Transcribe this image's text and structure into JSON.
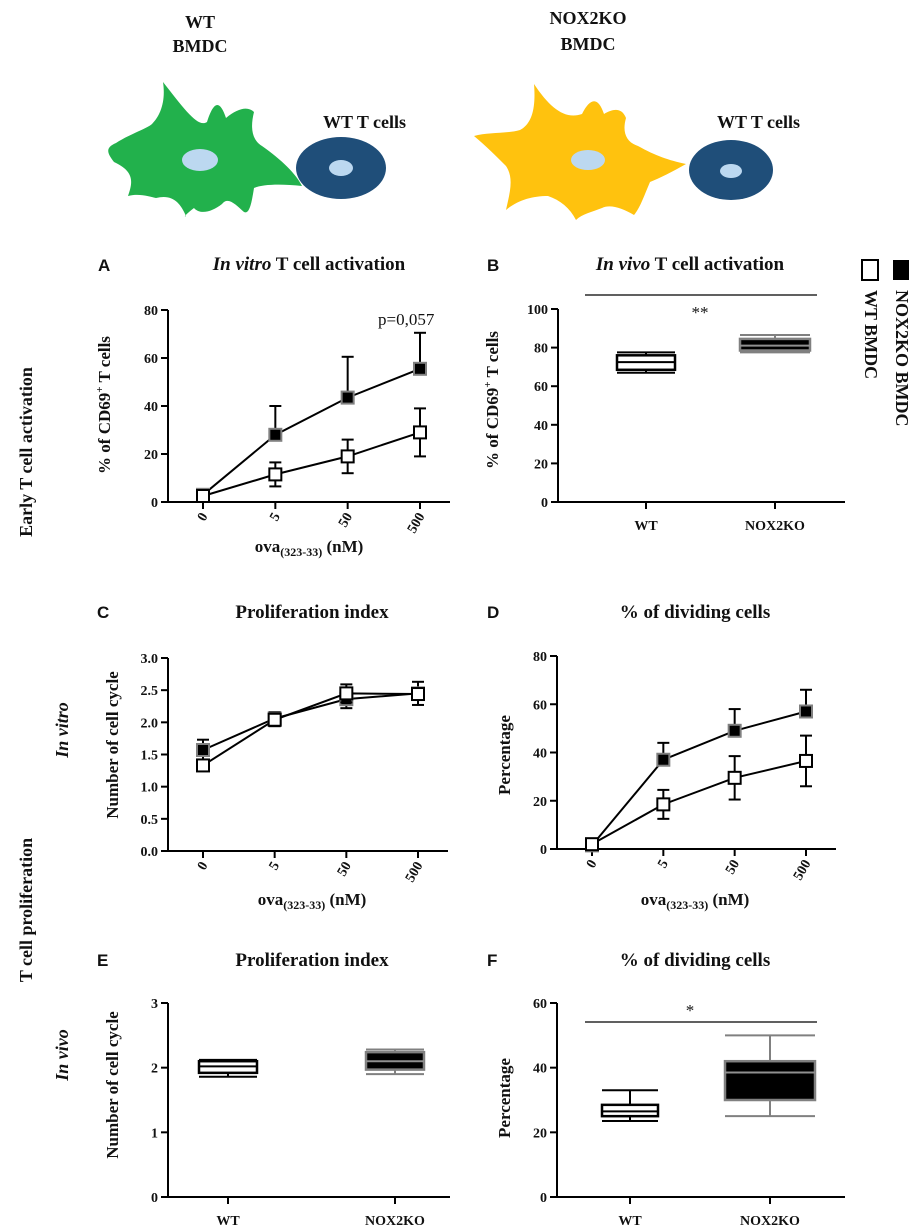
{
  "colors": {
    "wt_cell": "#22b14c",
    "nox_cell": "#ffc20e",
    "tcell_outer": "#1f4e79",
    "nucleus": "#bcd8f0",
    "nox_box_fill": "#000000",
    "wt_box_fill": "#ffffff",
    "nox_marker_outline": "#808080"
  },
  "diagram": {
    "wt_label_line1": "WT",
    "wt_label_line2": "BMDC",
    "wt_tcells": "WT T cells",
    "nox_label_line1": "NOX2KO",
    "nox_label_line2": "BMDC",
    "nox_tcells": "WT T cells"
  },
  "legend": {
    "nox": "NOX2KO BMDC",
    "wt": "WT BMDC"
  },
  "row_labels": {
    "early": "Early T cell activation",
    "prolif": "T cell proliferation",
    "in_vitro": "In vitro",
    "in_vivo": "In vivo"
  },
  "panels": {
    "A": {
      "letter": "A",
      "title_italic": "In vitro",
      "title_rest": " T cell activation"
    },
    "B": {
      "letter": "B",
      "title_italic": "In vivo",
      "title_rest": " T cell activation"
    },
    "C": {
      "letter": "C",
      "title": "Proliferation index"
    },
    "D": {
      "letter": "D",
      "title": "% of dividing cells"
    },
    "E": {
      "letter": "E",
      "title": "Proliferation index"
    },
    "F": {
      "letter": "F",
      "title": "% of dividing cells"
    }
  },
  "axes": {
    "ova_main": "ova",
    "ova_sub": "(323-33)",
    "ova_unit": " (nM)",
    "cd69_pre": "% of CD69",
    "cd69_sup": "+",
    "cd69_post": " T cells",
    "num_cycle": "Number of cell cycle",
    "percentage": "Percentage"
  },
  "annotations": {
    "A_p": "p=0,057",
    "B_sig": "**",
    "F_sig": "*"
  },
  "chart_data": [
    {
      "id": "A",
      "type": "line",
      "title": "In vitro T cell activation",
      "categories": [
        "0",
        "5",
        "50",
        "500"
      ],
      "ylabel": "% of CD69+ T cells",
      "xlabel": "ova(323-33) (nM)",
      "ylim": [
        0,
        80
      ],
      "yticks": [
        0,
        20,
        40,
        60,
        80
      ],
      "series": [
        {
          "name": "NOX2KO BMDC",
          "values": [
            3,
            28,
            43.5,
            55.5
          ],
          "err": [
            1.5,
            12,
            17,
            15
          ]
        },
        {
          "name": "WT BMDC",
          "values": [
            2.5,
            11.5,
            19,
            29
          ],
          "err": [
            1.5,
            5,
            7,
            10
          ]
        }
      ]
    },
    {
      "id": "B",
      "type": "box",
      "title": "In vivo T cell activation",
      "categories": [
        "WT",
        "NOX2KO"
      ],
      "ylabel": "% of CD69+ T cells",
      "ylim": [
        0,
        100
      ],
      "yticks": [
        0,
        20,
        40,
        60,
        80,
        100
      ],
      "boxes": [
        {
          "name": "WT",
          "min": 67,
          "q1": 68.5,
          "median": 72.5,
          "q3": 76,
          "max": 77.5
        },
        {
          "name": "NOX2KO",
          "min": 77.5,
          "q1": 78.5,
          "median": 81,
          "q3": 84.5,
          "max": 86.5
        }
      ],
      "significance": "**"
    },
    {
      "id": "C",
      "type": "line",
      "title": "Proliferation index",
      "categories": [
        "0",
        "5",
        "50",
        "500"
      ],
      "ylabel": "Number of cell cycle",
      "xlabel": "ova(323-33) (nM)",
      "ylim": [
        0,
        3.0
      ],
      "yticks": [
        0.0,
        0.5,
        1.0,
        1.5,
        2.0,
        2.5,
        3.0
      ],
      "series": [
        {
          "name": "NOX2KO BMDC",
          "values": [
            1.57,
            2.06,
            2.36,
            2.45
          ],
          "err": [
            0.16,
            0.1,
            0.14,
            0.18
          ]
        },
        {
          "name": "WT BMDC",
          "values": [
            1.33,
            2.04,
            2.45,
            2.44
          ],
          "err": [
            0.08,
            0.1,
            0.14,
            0.08
          ]
        }
      ]
    },
    {
      "id": "D",
      "type": "line",
      "title": "% of dividing cells",
      "categories": [
        "0",
        "5",
        "50",
        "500"
      ],
      "ylabel": "Percentage",
      "xlabel": "ova(323-33) (nM)",
      "ylim": [
        0,
        80
      ],
      "yticks": [
        0,
        20,
        40,
        60,
        80
      ],
      "series": [
        {
          "name": "NOX2KO BMDC",
          "values": [
            1.5,
            37,
            49,
            57
          ],
          "err": [
            1,
            7,
            9,
            9
          ]
        },
        {
          "name": "WT BMDC",
          "values": [
            2,
            18.5,
            29.5,
            36.5
          ],
          "err": [
            1,
            6,
            9,
            10.5
          ]
        }
      ]
    },
    {
      "id": "E",
      "type": "box",
      "title": "Proliferation index",
      "categories": [
        "WT",
        "NOX2KO"
      ],
      "ylabel": "Number of cell cycle",
      "ylim": [
        0,
        3
      ],
      "yticks": [
        0,
        1,
        2,
        3
      ],
      "boxes": [
        {
          "name": "WT",
          "min": 1.86,
          "q1": 1.92,
          "median": 2.02,
          "q3": 2.1,
          "max": 2.12
        },
        {
          "name": "NOX2KO",
          "min": 1.9,
          "q1": 1.97,
          "median": 2.1,
          "q3": 2.24,
          "max": 2.28
        }
      ]
    },
    {
      "id": "F",
      "type": "box",
      "title": "% of dividing cells",
      "categories": [
        "WT",
        "NOX2KO"
      ],
      "ylabel": "Percentage",
      "ylim": [
        0,
        60
      ],
      "yticks": [
        0,
        20,
        40,
        60
      ],
      "boxes": [
        {
          "name": "WT",
          "min": 23.5,
          "q1": 25,
          "median": 26.5,
          "q3": 28.5,
          "max": 33
        },
        {
          "name": "NOX2KO",
          "min": 25,
          "q1": 30,
          "median": 38.5,
          "q3": 42,
          "max": 50
        }
      ],
      "significance": "*"
    }
  ]
}
